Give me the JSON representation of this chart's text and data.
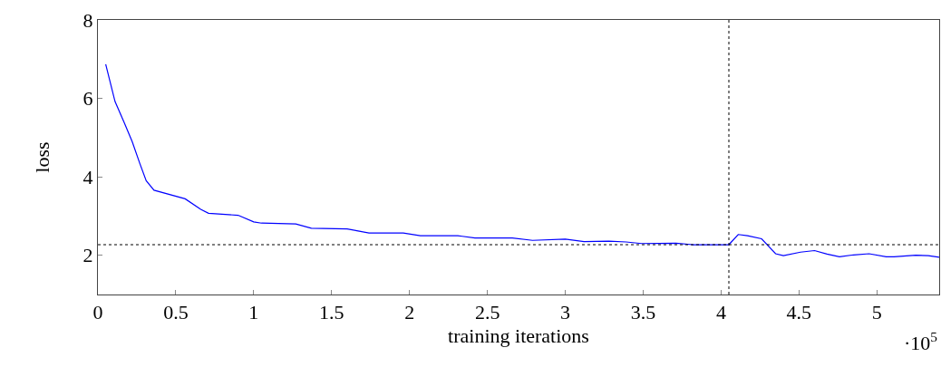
{
  "chart_data": {
    "type": "line",
    "xlabel": "training iterations",
    "ylabel": "loss",
    "annotations": [
      "·10$^{5}$"
    ],
    "x": [
      0.05,
      0.11,
      0.17,
      0.22,
      0.27,
      0.31,
      0.36,
      0.56,
      0.66,
      0.71,
      0.9,
      1.0,
      1.05,
      1.27,
      1.37,
      1.6,
      1.74,
      1.96,
      2.07,
      2.31,
      2.42,
      2.66,
      2.79,
      3.0,
      3.12,
      3.28,
      3.39,
      3.49,
      3.71,
      3.82,
      4.05,
      4.11,
      4.17,
      4.26,
      4.35,
      4.4,
      4.51,
      4.6,
      4.68,
      4.76,
      4.85,
      4.95,
      5.06,
      5.11,
      5.25,
      5.33,
      5.4
    ],
    "series": [
      {
        "color": "#0000ff",
        "values": [
          6.87,
          5.92,
          5.37,
          4.9,
          4.33,
          3.9,
          3.66,
          3.44,
          3.17,
          3.07,
          3.02,
          2.85,
          2.82,
          2.8,
          2.69,
          2.67,
          2.57,
          2.57,
          2.5,
          2.5,
          2.44,
          2.44,
          2.38,
          2.41,
          2.35,
          2.36,
          2.34,
          2.3,
          2.31,
          2.27,
          2.27,
          2.53,
          2.5,
          2.42,
          2.04,
          1.99,
          2.08,
          2.12,
          2.03,
          1.96,
          2.01,
          2.04,
          1.96,
          1.96,
          2.0,
          1.99,
          1.95
        ]
      }
    ],
    "xlim": [
      0,
      5.4
    ],
    "ylim": [
      1,
      8
    ],
    "xticks": [
      0,
      0.5,
      1,
      1.5,
      2,
      2.5,
      3,
      3.5,
      4,
      4.5,
      5
    ],
    "yticks": [
      2,
      4,
      6,
      8
    ],
    "ref_lines": [
      {
        "axis": "x",
        "value": 4.05,
        "color": "#000000",
        "line_style": "dotted"
      },
      {
        "axis": "y",
        "value": 2.27,
        "color": "#000000",
        "line_style": "dotted"
      }
    ],
    "marker": "none",
    "line_style": "solid"
  }
}
